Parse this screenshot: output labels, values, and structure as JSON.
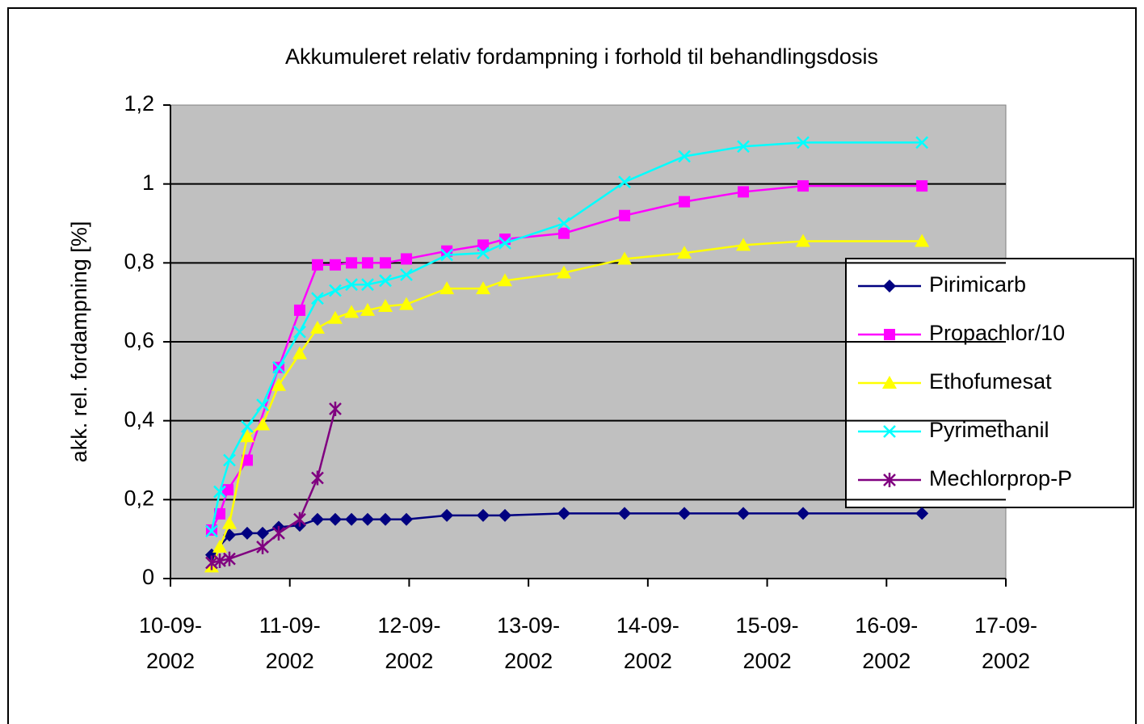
{
  "chart_data": {
    "type": "line",
    "title": "Akkumuleret relativ fordampning i forhold til behandlingsdosis",
    "ylabel": "akk. rel. fordampning [%]",
    "xlim": [
      10,
      17
    ],
    "xticks": [
      {
        "value": 10,
        "label": "10-09-2002"
      },
      {
        "value": 11,
        "label": "11-09-2002"
      },
      {
        "value": 12,
        "label": "12-09-2002"
      },
      {
        "value": 13,
        "label": "13-09-2002"
      },
      {
        "value": 14,
        "label": "14-09-2002"
      },
      {
        "value": 15,
        "label": "15-09-2002"
      },
      {
        "value": 16,
        "label": "16-09-2002"
      },
      {
        "value": 17,
        "label": "17-09-2002"
      }
    ],
    "ylim": [
      0,
      1.2
    ],
    "yticks": [
      0,
      {
        "value": 0.2,
        "label": "0,2"
      },
      {
        "value": 0.4,
        "label": "0,4"
      },
      {
        "value": 0.6,
        "label": "0,6"
      },
      {
        "value": 0.8,
        "label": "0,8"
      },
      1,
      {
        "value": 1.2,
        "label": "1,2"
      }
    ],
    "grid": true,
    "legend": "right",
    "series": [
      {
        "name": "Pirimicarb",
        "color": "#000080",
        "marker": "diamond",
        "x": [
          10.345,
          10.494,
          10.643,
          10.772,
          10.907,
          11.083,
          11.232,
          11.381,
          11.517,
          11.652,
          11.801,
          11.977,
          12.316,
          12.62,
          12.803,
          13.297,
          13.805,
          14.306,
          14.8,
          15.301,
          16.297
        ],
        "values": [
          0.06,
          0.11,
          0.115,
          0.115,
          0.13,
          0.135,
          0.15,
          0.15,
          0.15,
          0.15,
          0.15,
          0.15,
          0.16,
          0.16,
          0.16,
          0.165,
          0.165,
          0.165,
          0.165,
          0.165,
          0.165
        ]
      },
      {
        "name": "Propachlor/10",
        "color": "#ff00ff",
        "marker": "square",
        "x": [
          10.345,
          10.413,
          10.481,
          10.643,
          10.907,
          11.083,
          11.232,
          11.381,
          11.517,
          11.652,
          11.801,
          11.977,
          12.316,
          12.62,
          12.803,
          13.297,
          13.805,
          14.306,
          14.8,
          15.301,
          16.297
        ],
        "values": [
          0.123,
          0.164,
          0.225,
          0.3,
          0.535,
          0.68,
          0.795,
          0.795,
          0.8,
          0.8,
          0.8,
          0.81,
          0.83,
          0.845,
          0.86,
          0.875,
          0.92,
          0.955,
          0.98,
          0.995,
          0.995
        ]
      },
      {
        "name": "Ethofumesat",
        "color": "#ffff00",
        "marker": "triangle",
        "x": [
          10.345,
          10.413,
          10.494,
          10.643,
          10.772,
          10.907,
          11.083,
          11.232,
          11.381,
          11.517,
          11.652,
          11.801,
          11.977,
          12.316,
          12.62,
          12.803,
          13.297,
          13.805,
          14.306,
          14.8,
          15.301,
          16.297
        ],
        "values": [
          0.03,
          0.08,
          0.14,
          0.36,
          0.39,
          0.49,
          0.57,
          0.635,
          0.66,
          0.675,
          0.68,
          0.69,
          0.695,
          0.735,
          0.735,
          0.755,
          0.775,
          0.81,
          0.825,
          0.845,
          0.855,
          0.855
        ]
      },
      {
        "name": "Pyrimethanil",
        "color": "#00ffff",
        "marker": "x",
        "x": [
          10.345,
          10.413,
          10.494,
          10.643,
          10.772,
          10.907,
          11.083,
          11.232,
          11.381,
          11.517,
          11.652,
          11.801,
          11.977,
          12.316,
          12.62,
          12.803,
          13.297,
          13.805,
          14.306,
          14.8,
          15.301,
          16.297
        ],
        "values": [
          0.12,
          0.22,
          0.3,
          0.385,
          0.44,
          0.535,
          0.625,
          0.71,
          0.73,
          0.745,
          0.745,
          0.755,
          0.77,
          0.82,
          0.825,
          0.85,
          0.9,
          1.005,
          1.07,
          1.095,
          1.105,
          1.105
        ]
      },
      {
        "name": "Mechlorprop-P",
        "color": "#800080",
        "marker": "star",
        "x": [
          10.345,
          10.413,
          10.494,
          10.772,
          10.907,
          11.083,
          11.232,
          11.381
        ],
        "values": [
          0.04,
          0.045,
          0.05,
          0.08,
          0.115,
          0.15,
          0.255,
          0.43
        ]
      }
    ]
  }
}
